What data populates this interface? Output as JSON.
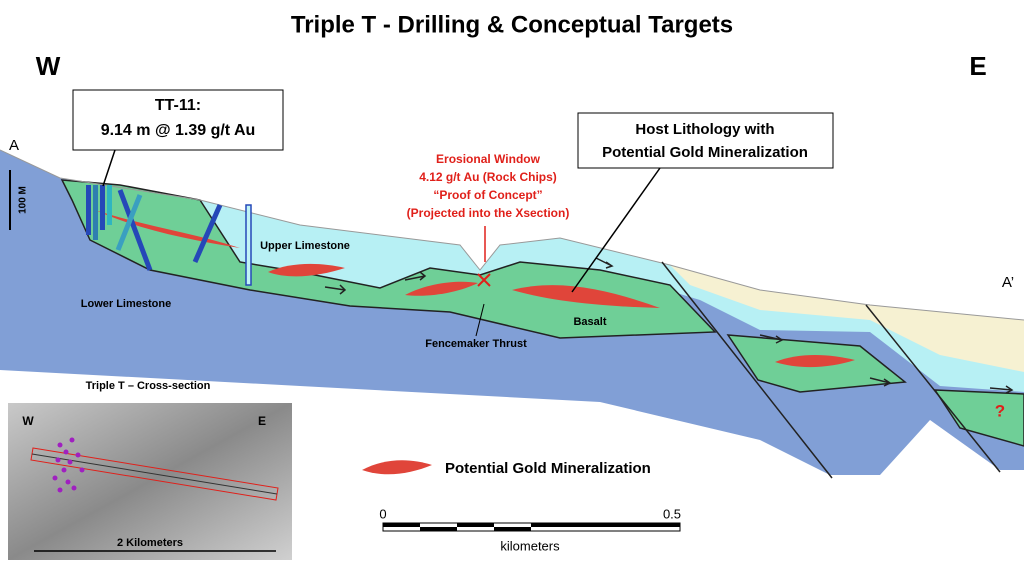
{
  "title": "Triple T - Drilling & Conceptual Targets",
  "section": {
    "west": "W",
    "east": "E",
    "start": "A",
    "end": "A’",
    "vertical_scale": "100 M"
  },
  "units": {
    "upper_limestone": "Upper Limestone",
    "lower_limestone": "Lower Limestone",
    "basalt": "Basalt",
    "thrust": "Fencemaker Thrust",
    "unknown": "?"
  },
  "drill_callout": {
    "lines": [
      "TT-11:",
      "9.14 m @ 1.39 g/t Au"
    ]
  },
  "window_callout": {
    "lines": [
      "Erosional Window",
      "4.12 g/t Au (Rock Chips)",
      "“Proof of Concept”",
      "(Projected into the Xsection)"
    ]
  },
  "host_callout": {
    "lines": [
      "Host Lithology with",
      "Potential Gold Mineralization"
    ]
  },
  "legend": {
    "label": "Potential Gold Mineralization"
  },
  "inset": {
    "title": "Triple T – Cross-section",
    "west": "W",
    "east": "E",
    "scale": "2 Kilometers"
  },
  "scale_bar": {
    "start": "0",
    "end": "0.5",
    "unit": "kilometers"
  }
}
